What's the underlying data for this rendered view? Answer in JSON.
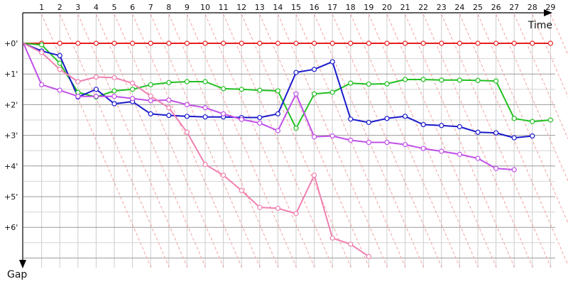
{
  "chart_data": {
    "type": "line",
    "xlabel": "Time",
    "ylabel": "Gap",
    "x_ticks": [
      1,
      2,
      3,
      4,
      5,
      6,
      7,
      8,
      9,
      10,
      11,
      12,
      13,
      14,
      15,
      16,
      17,
      18,
      19,
      20,
      21,
      22,
      23,
      24,
      25,
      26,
      27,
      28,
      29
    ],
    "y_ticks": [
      "+0'",
      "+1'",
      "+2'",
      "+3'",
      "+4'",
      "+5'",
      "+6'"
    ],
    "ylim": [
      0,
      7.3
    ],
    "grid": true,
    "series": [
      {
        "color": "#e82020",
        "points": [
          [
            0,
            0
          ],
          [
            1,
            0
          ],
          [
            2,
            0
          ],
          [
            3,
            0
          ],
          [
            4,
            0
          ],
          [
            5,
            0
          ],
          [
            6,
            0
          ],
          [
            7,
            0
          ],
          [
            8,
            0
          ],
          [
            9,
            0
          ],
          [
            10,
            0
          ],
          [
            11,
            0
          ],
          [
            12,
            0
          ],
          [
            13,
            0
          ],
          [
            14,
            0
          ],
          [
            15,
            0
          ],
          [
            16,
            0
          ],
          [
            17,
            0
          ],
          [
            18,
            0
          ],
          [
            19,
            0
          ],
          [
            20,
            0
          ],
          [
            21,
            0
          ],
          [
            22,
            0
          ],
          [
            23,
            0
          ],
          [
            24,
            0
          ],
          [
            25,
            0
          ],
          [
            26,
            0
          ],
          [
            27,
            0
          ],
          [
            28,
            0
          ],
          [
            29,
            0
          ]
        ]
      },
      {
        "color": "#22c022",
        "points": [
          [
            0,
            0
          ],
          [
            1,
            0.05
          ],
          [
            2,
            0.65
          ],
          [
            3,
            1.6
          ],
          [
            4,
            1.75
          ],
          [
            5,
            1.55
          ],
          [
            6,
            1.5
          ],
          [
            7,
            1.35
          ],
          [
            8,
            1.28
          ],
          [
            9,
            1.25
          ],
          [
            10,
            1.25
          ],
          [
            11,
            1.48
          ],
          [
            12,
            1.5
          ],
          [
            13,
            1.53
          ],
          [
            14,
            1.55
          ],
          [
            15,
            2.77
          ],
          [
            16,
            1.65
          ],
          [
            17,
            1.6
          ],
          [
            18,
            1.3
          ],
          [
            19,
            1.33
          ],
          [
            20,
            1.32
          ],
          [
            21,
            1.18
          ],
          [
            22,
            1.18
          ],
          [
            23,
            1.2
          ],
          [
            24,
            1.2
          ],
          [
            25,
            1.21
          ],
          [
            26,
            1.23
          ],
          [
            27,
            2.45
          ],
          [
            28,
            2.55
          ],
          [
            29,
            2.5
          ]
        ]
      },
      {
        "color": "#1a1acc",
        "points": [
          [
            0,
            0
          ],
          [
            1,
            0.25
          ],
          [
            2,
            0.4
          ],
          [
            3,
            1.75
          ],
          [
            4,
            1.5
          ],
          [
            5,
            1.97
          ],
          [
            6,
            1.9
          ],
          [
            7,
            2.3
          ],
          [
            8,
            2.35
          ],
          [
            9,
            2.38
          ],
          [
            10,
            2.4
          ],
          [
            11,
            2.4
          ],
          [
            12,
            2.42
          ],
          [
            13,
            2.42
          ],
          [
            14,
            2.3
          ],
          [
            15,
            0.95
          ],
          [
            16,
            0.85
          ],
          [
            17,
            0.6
          ],
          [
            18,
            2.47
          ],
          [
            19,
            2.58
          ],
          [
            20,
            2.45
          ],
          [
            21,
            2.38
          ],
          [
            22,
            2.65
          ],
          [
            23,
            2.68
          ],
          [
            24,
            2.72
          ],
          [
            25,
            2.9
          ],
          [
            26,
            2.92
          ],
          [
            27,
            3.08
          ],
          [
            28,
            3.02
          ]
        ]
      },
      {
        "color": "#c050e8",
        "points": [
          [
            0,
            0
          ],
          [
            1,
            1.35
          ],
          [
            2,
            1.53
          ],
          [
            3,
            1.73
          ],
          [
            4,
            1.73
          ],
          [
            5,
            1.73
          ],
          [
            6,
            1.8
          ],
          [
            7,
            1.87
          ],
          [
            8,
            1.85
          ],
          [
            9,
            2.0
          ],
          [
            10,
            2.1
          ],
          [
            11,
            2.3
          ],
          [
            12,
            2.48
          ],
          [
            13,
            2.6
          ],
          [
            14,
            2.85
          ],
          [
            15,
            1.65
          ],
          [
            16,
            3.05
          ],
          [
            17,
            3.02
          ],
          [
            18,
            3.16
          ],
          [
            19,
            3.23
          ],
          [
            20,
            3.23
          ],
          [
            21,
            3.3
          ],
          [
            22,
            3.43
          ],
          [
            23,
            3.52
          ],
          [
            24,
            3.62
          ],
          [
            25,
            3.75
          ],
          [
            26,
            4.08
          ],
          [
            27,
            4.12
          ]
        ]
      },
      {
        "color": "#f080b0",
        "points": [
          [
            0,
            0
          ],
          [
            1,
            0.3
          ],
          [
            2,
            0.85
          ],
          [
            3,
            1.25
          ],
          [
            4,
            1.1
          ],
          [
            5,
            1.12
          ],
          [
            6,
            1.3
          ],
          [
            7,
            1.72
          ],
          [
            8,
            2.1
          ],
          [
            9,
            2.9
          ],
          [
            10,
            3.95
          ],
          [
            11,
            4.3
          ],
          [
            12,
            4.8
          ],
          [
            13,
            5.35
          ],
          [
            14,
            5.38
          ],
          [
            15,
            5.55
          ],
          [
            16,
            4.3
          ],
          [
            17,
            6.35
          ],
          [
            18,
            6.55
          ],
          [
            19,
            6.95
          ]
        ]
      }
    ]
  }
}
